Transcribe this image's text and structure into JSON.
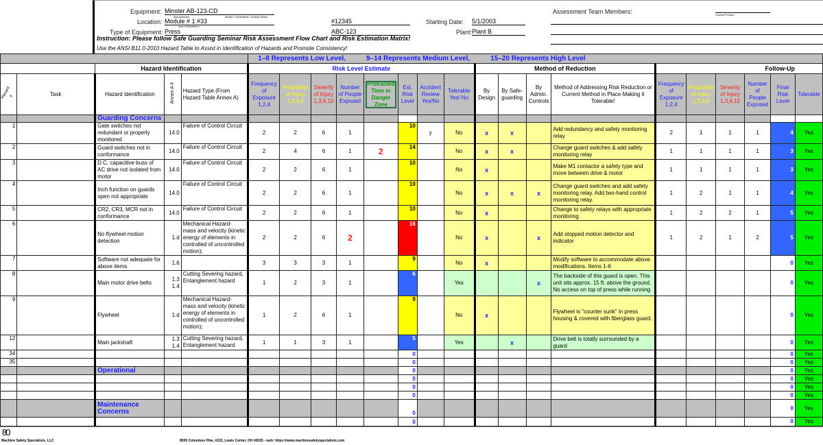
{
  "form": {
    "equipment_label": "Equipment:",
    "equipment_value": "Minster   AB-123-CD",
    "manufacturer_caption": "Manufacturer",
    "model_caption": "Model / Generation / Tooling Series",
    "location_label": "Location:",
    "location_value": "Module # 1    #33",
    "line_caption": "Line #    Machine #",
    "type_label": "Type of Equipment:",
    "type_value": "Press",
    "serial_value": "#12345",
    "model_value": "ABC-123",
    "starting_date_label": "Starting Date:",
    "starting_date_value": "5/1/2003",
    "plant_label": "Plant:",
    "plant_value": "Plant B",
    "team_label": "Assessment Team Members:",
    "contact_caption": "Contact Person",
    "instruction": "Instruction: Please follow Safe Guarding Seminar Risk Assessment Flow Chart and Risk Estimation Matrix!",
    "ansi_note": "Use the ANSI B11.0-2010 Hazard Table to Assist in Identification of Hazards and Promote Consistency!"
  },
  "banner": {
    "low": "1–8 Represents Low Level,",
    "medium": "9–14 Represents Medium Level,",
    "high": "15–20 Represents High Level"
  },
  "sections": {
    "hazard_identification": "Hazard Identification",
    "risk_level_estimate": "Risk Level Estimate",
    "method_of_reduction": "Method of Reduction",
    "follow_up": "Follow-Up"
  },
  "columns": {
    "hazard_num": "Hazard #",
    "task": "Task",
    "hazard_identification": "Hazard Identification",
    "annex": "Annex A #",
    "hazard_type": "Hazard Type (From Hazard Table Annex A)",
    "frequency": "Frequency of Exposure 1,2,4",
    "probability": "Probability of Injury 1,2,4,6",
    "severity": "Severity of Injury 1,3,6,10",
    "people": "Number of People Exposed",
    "protracted": "Protracted Time in Danger Zone",
    "est_risk": "Est. Risk Level",
    "accident_review": "Accident Review Yes/No",
    "tolerable": "Tolerable Yes/ No",
    "by_design": "By Design",
    "by_safeguarding": "By Safe-guarding",
    "by_admin": "By Admin. Controls",
    "method": "Method of Addressing Risk Reduction or Current Method in Place Making it Tolerable!",
    "f_frequency": "Frequency of Exposure 1,2,4",
    "f_probability": "Probability of Injury 1,2,4,6",
    "f_severity": "Severity of Injury 1,3,6,10",
    "f_people": "Number of People Exposed",
    "final_risk": "Final Risk Level",
    "f_tolerable": "Tolerable"
  },
  "colors": {
    "low": "#3366ff",
    "medium": "#ffff00",
    "high": "#ff0000",
    "tolerable_yes": "#ccffcc",
    "tolerable_no": "#ffff99",
    "final_yes": "#00ee00"
  },
  "rows": [
    {
      "section": "Guarding Concerns"
    },
    {
      "num": "1",
      "hazard": "Gate switches not redundant or properly monitored",
      "annex": "14.0",
      "type": "Failure of Control Circuit",
      "freq": "2",
      "prob": "2",
      "sev": "6",
      "people": "1",
      "protracted": "",
      "risk": "10",
      "level": "medium",
      "review": "y",
      "tolerable": "No",
      "design": "x",
      "safeguarding": "x",
      "admin": "",
      "method": "Add redundancy and safety monitoring relay",
      "f_freq": "2",
      "f_prob": "1",
      "f_sev": "1",
      "f_people": "1",
      "final": "4",
      "f_tolerable": "Yes"
    },
    {
      "num": "2",
      "hazard": "Guard switches not in conformance",
      "annex": "14.0",
      "type": "Failure of Control Circuit",
      "freq": "2",
      "prob": "4",
      "sev": "6",
      "people": "1",
      "protracted": "2",
      "risk": "14",
      "level": "medium",
      "review": "",
      "tolerable": "No",
      "design": "x",
      "safeguarding": "x",
      "admin": "",
      "method": "Change guard switches & add safety monitoring relay",
      "f_freq": "1",
      "f_prob": "1",
      "f_sev": "1",
      "f_people": "1",
      "final": "3",
      "f_tolerable": "Yes"
    },
    {
      "num": "3",
      "hazard": "D.C. capacitive buss of AC drive not isolated from motor",
      "annex": "14.0",
      "type": "Failure of Control Circuit",
      "freq": "2",
      "prob": "2",
      "sev": "6",
      "people": "1",
      "protracted": "",
      "risk": "10",
      "level": "medium",
      "review": "",
      "tolerable": "No",
      "design": "x",
      "safeguarding": "",
      "admin": "",
      "method": "Make M1 contactor a safety type and move between drive & motor",
      "f_freq": "1",
      "f_prob": "1",
      "f_sev": "1",
      "f_people": "1",
      "final": "3",
      "f_tolerable": "Yes"
    },
    {
      "num": "4",
      "hazard": "Inch function on guards open not appropriate",
      "annex": "14.0",
      "type": "Failure of Control Circuit",
      "freq": "2",
      "prob": "2",
      "sev": "6",
      "people": "1",
      "protracted": "",
      "risk": "10",
      "level": "medium",
      "review": "",
      "tolerable": "No",
      "design": "x",
      "safeguarding": "x",
      "admin": "x",
      "method": "Change guard switches and add safety monitoring relay.  Add two-hand control monitoring relay.",
      "f_freq": "1",
      "f_prob": "2",
      "f_sev": "1",
      "f_people": "1",
      "final": "4",
      "f_tolerable": "Yes"
    },
    {
      "num": "5",
      "hazard": "CR2, CR3, MCR not in conformance",
      "annex": "14.0",
      "type": "Failure of Control Circuit",
      "freq": "2",
      "prob": "2",
      "sev": "6",
      "people": "1",
      "protracted": "",
      "risk": "10",
      "level": "medium",
      "review": "",
      "tolerable": "No",
      "design": "x",
      "safeguarding": "",
      "admin": "",
      "method": "Change to safety relays with appropriate monitoring",
      "f_freq": "1",
      "f_prob": "2",
      "f_sev": "2",
      "f_people": "1",
      "final": "5",
      "f_tolerable": "Yes"
    },
    {
      "num": "6",
      "hazard": "No flywheel motion detection",
      "annex": "1.d",
      "type": "Mechanical Hazard- mass and velocity (kinetic energy of elements in controlled of uncontrolled motion);",
      "freq": "2",
      "prob": "2",
      "sev": "6",
      "people": "2",
      "protracted": "",
      "risk": "16",
      "level": "high",
      "review": "",
      "tolerable": "No",
      "design": "x",
      "safeguarding": "",
      "admin": "x",
      "method": "Add stopped motion detector and indicator",
      "f_freq": "1",
      "f_prob": "2",
      "f_sev": "1",
      "f_people": "2",
      "final": "5",
      "f_tolerable": "Yes"
    },
    {
      "num": "7",
      "hazard": "Software not adequate for above items",
      "annex": "1.6",
      "type": "",
      "freq": "3",
      "prob": "3",
      "sev": "3",
      "people": "1",
      "protracted": "",
      "risk": "9",
      "level": "medium",
      "review": "",
      "tolerable": "No",
      "design": "x",
      "safeguarding": "",
      "admin": "",
      "method": "Modify software to accommodate above modifications. Items 1-6",
      "f_freq": "",
      "f_prob": "",
      "f_sev": "",
      "f_people": "",
      "final": "0",
      "f_tolerable": "Yes"
    },
    {
      "num": "8",
      "hazard": "Main motor drive belts",
      "annex": "1.3 1.4",
      "type": "Cutting Severing hazard, Entanglement hazard",
      "freq": "1",
      "prob": "2",
      "sev": "3",
      "people": "1",
      "protracted": "",
      "risk": "6",
      "level": "low",
      "review": "",
      "tolerable": "Yes",
      "design": "",
      "safeguarding": "",
      "admin": "x",
      "method": "The backside of this guard is open.  This unit sits approx. 15 ft. above the ground. No access on top of press while running",
      "f_freq": "",
      "f_prob": "",
      "f_sev": "",
      "f_people": "",
      "final": "0",
      "f_tolerable": "Yes"
    },
    {
      "num": "9",
      "hazard": "Flywheel",
      "annex": "1.d",
      "type": "Mechanical Hazard- mass and velocity (kinetic energy of elements in controlled of uncontrolled motion);",
      "freq": "1",
      "prob": "2",
      "sev": "6",
      "people": "1",
      "protracted": "",
      "risk": "9",
      "level": "medium",
      "review": "",
      "tolerable": "No",
      "design": "x",
      "safeguarding": "",
      "admin": "",
      "method": "Flywheel is \"counter sunk\" in press housing & covered with fiberglass guard.",
      "f_freq": "",
      "f_prob": "",
      "f_sev": "",
      "f_people": "",
      "final": "0",
      "f_tolerable": "Yes"
    },
    {
      "num": "12",
      "hazard": "Main jackshaft",
      "annex": "1.3 1.4",
      "type": "Cutting Severing hazard, Entanglement hazard",
      "freq": "1",
      "prob": "1",
      "sev": "3",
      "people": "1",
      "protracted": "",
      "risk": "5",
      "level": "low",
      "review": "",
      "tolerable": "Yes",
      "design": "",
      "safeguarding": "x",
      "admin": "",
      "method": "Drive belt is totally surrounded by a guard",
      "f_freq": "",
      "f_prob": "",
      "f_sev": "",
      "f_people": "",
      "final": "0",
      "f_tolerable": "Yes"
    },
    {
      "num": "34",
      "risk": "0",
      "final": "0",
      "f_tolerable": "Yes"
    },
    {
      "num": "35",
      "risk": "0",
      "final": "0",
      "f_tolerable": "Yes"
    },
    {
      "section": "Operational",
      "risk": "0",
      "final": "0",
      "f_tolerable": "Yes"
    },
    {
      "risk": "0",
      "final": "0",
      "f_tolerable": "Yes"
    },
    {
      "risk": "0",
      "final": "0",
      "f_tolerable": "Yes"
    },
    {
      "risk": "0",
      "final": "0",
      "f_tolerable": "Yes"
    },
    {
      "section": "Maintenance Concerns",
      "risk": "0",
      "final": "0",
      "f_tolerable": "Yes"
    },
    {
      "risk": "0",
      "final": "0",
      "f_tolerable": "Yes"
    }
  ],
  "footer": {
    "logo": "80",
    "company": "Machine Safety Specialists, LLC",
    "address": "8595 Columbus Pike, #222, Lewis Center, OH 43035 - web: https://www.machinesafetyspecialists.com"
  }
}
